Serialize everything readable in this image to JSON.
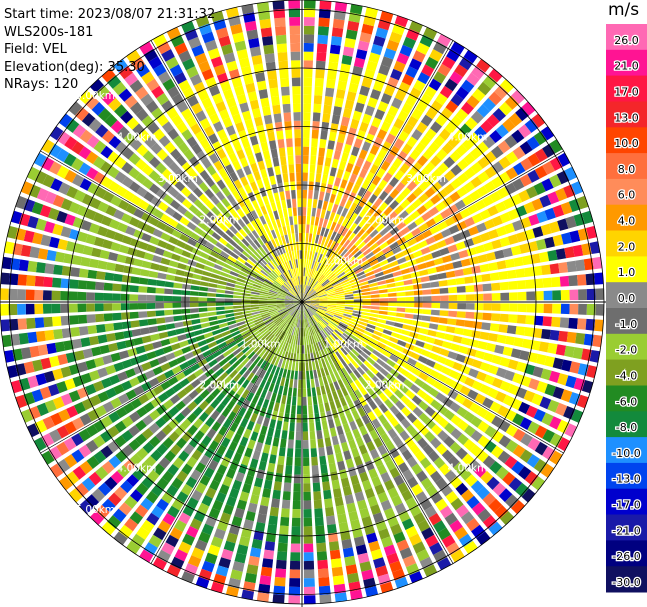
{
  "header": {
    "start_time": "Start time: 2023/08/07 21:31:32",
    "instrument": "WLS200s-181",
    "field": "Field: VEL",
    "elevation": "Elevation(deg): 35.30",
    "nrays": "NRays: 120"
  },
  "chart_data": {
    "type": "heatmap",
    "projection": "polar-ppi",
    "field": "VEL",
    "units": "m/s",
    "nrays": 120,
    "range_max_km": 6.2,
    "range_rings_km": [
      1,
      2,
      3,
      4,
      5
    ],
    "range_ring_labels": [
      "1.00km",
      "2.00km",
      "3.00km",
      "4.00km",
      "5.00km"
    ],
    "range_labels": [
      {
        "text": "1.00km",
        "azimuth": 225,
        "range": 1.0
      },
      {
        "text": "1.00km",
        "azimuth": 135,
        "range": 1.0
      },
      {
        "text": "1.00km",
        "azimuth": 45,
        "range": 1.0
      },
      {
        "text": "2.00km",
        "azimuth": 315,
        "range": 2.0
      },
      {
        "text": "2.00km",
        "azimuth": 45,
        "range": 2.0
      },
      {
        "text": "2.00km",
        "azimuth": 225,
        "range": 2.0
      },
      {
        "text": "2.00km",
        "azimuth": 135,
        "range": 2.0
      },
      {
        "text": "3.00km",
        "azimuth": 315,
        "range": 3.0
      },
      {
        "text": "3.00km",
        "azimuth": 45,
        "range": 3.0
      },
      {
        "text": "4.00km",
        "azimuth": 315,
        "range": 4.0
      },
      {
        "text": "4.00km",
        "azimuth": 45,
        "range": 4.0
      },
      {
        "text": "4.00km",
        "azimuth": 225,
        "range": 4.0
      },
      {
        "text": "4.00km",
        "azimuth": 135,
        "range": 4.0
      },
      {
        "text": "5.00km",
        "azimuth": 315,
        "range": 5.0
      },
      {
        "text": "5.00km",
        "azimuth": 225,
        "range": 5.0
      }
    ],
    "colorbar": {
      "title": "m/s",
      "ticks": [
        "26.0",
        "21.0",
        "17.0",
        "13.0",
        "10.0",
        "8.0",
        "6.0",
        "4.0",
        "2.0",
        "1.0",
        "0.0",
        "-1.0",
        "-2.0",
        "-4.0",
        "-6.0",
        "-8.0",
        "-10.0",
        "-13.0",
        "-17.0",
        "-21.0",
        "-26.0",
        "-30.0"
      ],
      "colors": [
        "#ff69b4",
        "#ff1493",
        "#ff1744",
        "#f4262a",
        "#ff4500",
        "#ff6f3d",
        "#ff8c5a",
        "#ff9900",
        "#ffd400",
        "#ffff00",
        "#8a8a8a",
        "#6e6e6e",
        "#9acd32",
        "#7fa020",
        "#228b22",
        "#138a3c",
        "#1e90ff",
        "#0044ee",
        "#0000cd",
        "#1a1aa8",
        "#000080",
        "#101060"
      ]
    },
    "velocity_pattern": {
      "positive_sector": "north-east (yellow/orange, 0 to 6 m/s)",
      "negative_sector": "south-west (green, -2 to -8 m/s)",
      "noise_beyond_km": 4.2
    }
  }
}
